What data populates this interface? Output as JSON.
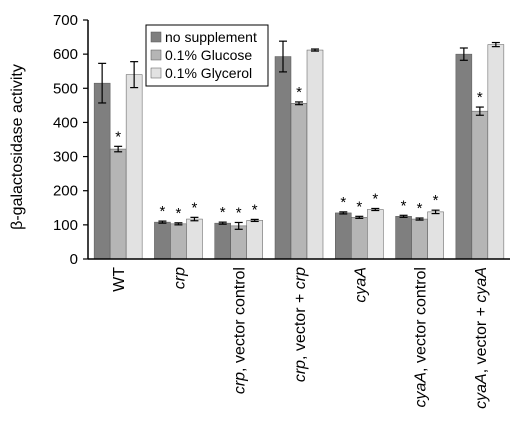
{
  "chart_data": {
    "type": "bar",
    "title": "",
    "ylabel": "β-galactosidase activity",
    "xlabel": "",
    "ylim": [
      0,
      700
    ],
    "yticks": [
      0,
      100,
      200,
      300,
      400,
      500,
      600,
      700
    ],
    "categories": [
      {
        "name": "WT",
        "italic_prefix": "",
        "rest": "WT"
      },
      {
        "name": "crp",
        "italic_prefix": "crp",
        "rest": ""
      },
      {
        "name": "crp, vector control",
        "italic_prefix": "crp",
        "rest": ", vector control"
      },
      {
        "name": "crp, vector + crp",
        "italic_prefix": "crp",
        "rest": ", vector + ",
        "italic_suffix": "crp"
      },
      {
        "name": "cyaA",
        "italic_prefix": "cyaA",
        "rest": ""
      },
      {
        "name": "cyaA, vector control",
        "italic_prefix": "cyaA",
        "rest": ", vector control"
      },
      {
        "name": "cyaA, vector + cyaA",
        "italic_prefix": "cyaA",
        "rest": ", vector + ",
        "italic_suffix": "cyaA"
      }
    ],
    "series": [
      {
        "name": "no supplement",
        "color": "#7f7f7f",
        "values": [
          515,
          108,
          105,
          593,
          135,
          125,
          600
        ],
        "errors": [
          58,
          3,
          3,
          45,
          3,
          3,
          18
        ],
        "significant": [
          false,
          true,
          true,
          false,
          true,
          true,
          false
        ]
      },
      {
        "name": "0.1% Glucose",
        "color": "#b5b5b5",
        "values": [
          322,
          103,
          97,
          456,
          122,
          117,
          433
        ],
        "errors": [
          8,
          3,
          10,
          4,
          3,
          3,
          12
        ],
        "significant": [
          true,
          true,
          true,
          true,
          true,
          true,
          true
        ]
      },
      {
        "name": "0.1% Glycerol",
        "color": "#e2e2e2",
        "values": [
          540,
          117,
          113,
          612,
          145,
          138,
          628
        ],
        "errors": [
          38,
          5,
          3,
          3,
          3,
          5,
          6
        ],
        "significant": [
          false,
          true,
          true,
          false,
          true,
          true,
          false
        ]
      }
    ],
    "significance_marker": "*",
    "legend": {
      "position": "top-left-inside"
    }
  }
}
